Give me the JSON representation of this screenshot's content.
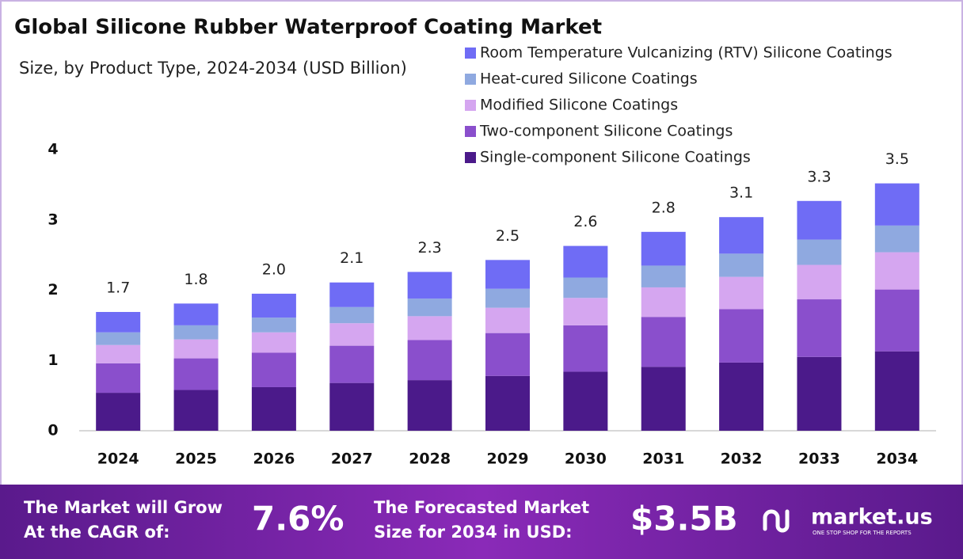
{
  "chart_data": {
    "type": "stacked_bar",
    "title": "Global Silicone Rubber Waterproof Coating Market",
    "subtitle": "Size, by Product Type, 2024-2034 (USD Billion)",
    "categories": [
      "2024",
      "2025",
      "2026",
      "2027",
      "2028",
      "2029",
      "2030",
      "2031",
      "2032",
      "2033",
      "2034"
    ],
    "series": [
      {
        "name": "Single-component Silicone Coatings",
        "color": "#4b1a8a",
        "values": [
          0.54,
          0.58,
          0.62,
          0.68,
          0.72,
          0.78,
          0.84,
          0.91,
          0.97,
          1.05,
          1.13
        ]
      },
      {
        "name": "Two-component Silicone Coatings",
        "color": "#8a4fcc",
        "values": [
          0.42,
          0.45,
          0.49,
          0.53,
          0.57,
          0.61,
          0.66,
          0.71,
          0.76,
          0.82,
          0.88
        ]
      },
      {
        "name": "Modified Silicone Coatings",
        "color": "#d5a6f0",
        "values": [
          0.26,
          0.27,
          0.29,
          0.32,
          0.34,
          0.36,
          0.39,
          0.42,
          0.46,
          0.49,
          0.53
        ]
      },
      {
        "name": "Heat-cured Silicone Coatings",
        "color": "#8fa9e0",
        "values": [
          0.18,
          0.2,
          0.21,
          0.23,
          0.25,
          0.27,
          0.29,
          0.31,
          0.33,
          0.36,
          0.38
        ]
      },
      {
        "name": "Room Temperature Vulcanizing (RTV) Silicone Coatings",
        "color": "#6f6cf5",
        "values": [
          0.29,
          0.31,
          0.34,
          0.35,
          0.38,
          0.41,
          0.45,
          0.48,
          0.52,
          0.55,
          0.6
        ]
      }
    ],
    "total_labels": [
      "1.7",
      "1.8",
      "2.0",
      "2.1",
      "2.3",
      "2.5",
      "2.6",
      "2.8",
      "3.1",
      "3.3",
      "3.5"
    ],
    "ylim": [
      0,
      4
    ],
    "yticks": [
      0,
      1,
      2,
      3,
      4
    ],
    "grid": false
  },
  "footer": {
    "cagr_text_1": "The Market will Grow",
    "cagr_text_2": "At the CAGR of:",
    "cagr_value": "7.6%",
    "size_text_1": "The Forecasted Market",
    "size_text_2": "Size for 2034 in USD:",
    "size_value": "$3.5B",
    "brand": "market.us",
    "tagline": "ONE STOP SHOP FOR THE REPORTS"
  }
}
